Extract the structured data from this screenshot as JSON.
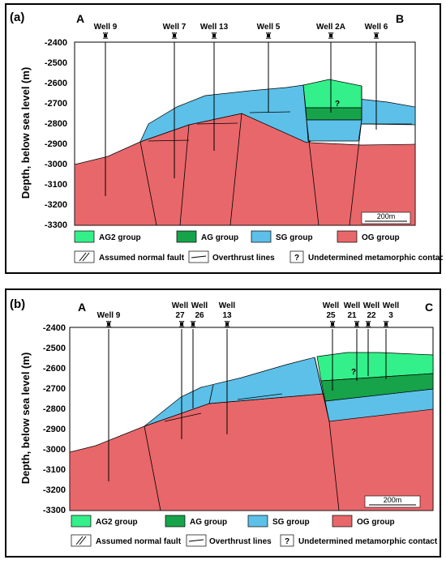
{
  "colors": {
    "AG2": "#33f08a",
    "AG": "#17a34a",
    "SG": "#5cc0e8",
    "OG": "#e8676a",
    "bg": "#ffffff"
  },
  "y_axis_label": "Depth, below sea level (m)",
  "legend": {
    "ag2": "AG2 group",
    "ag": "AG group",
    "sg": "SG group",
    "og": "OG group",
    "fault": "Assumed normal fault",
    "overthrust": "Overthrust lines",
    "unknown_symbol": "?",
    "unknown": "Undetermined metamorphic contact"
  },
  "scale_bar": "200m",
  "panels": [
    {
      "label": "(a)",
      "end_left": "A",
      "end_right": "B",
      "question_mark": "?",
      "ticks": [
        "-2400",
        "-2500",
        "-2600",
        "-2700",
        "-2800",
        "-2900",
        "-3000",
        "-3100",
        "-3200",
        "-3300"
      ],
      "wells": [
        {
          "l1": "Well 9",
          "l2": ""
        },
        {
          "l1": "Well 7",
          "l2": ""
        },
        {
          "l1": "Well 13",
          "l2": ""
        },
        {
          "l1": "Well 5",
          "l2": ""
        },
        {
          "l1": "Well 2A",
          "l2": ""
        },
        {
          "l1": "Well 6",
          "l2": ""
        }
      ]
    },
    {
      "label": "(b)",
      "end_left": "A",
      "end_right": "C",
      "question_mark": "?",
      "ticks": [
        "-2400",
        "-2500",
        "-2600",
        "-2700",
        "-2800",
        "-2900",
        "-3000",
        "-3100",
        "-3200",
        "-3300"
      ],
      "wells": [
        {
          "l1": "Well 9",
          "l2": ""
        },
        {
          "l1": "Well",
          "l2": "27"
        },
        {
          "l1": "Well",
          "l2": "26"
        },
        {
          "l1": "Well",
          "l2": "13"
        },
        {
          "l1": "Well",
          "l2": "25"
        },
        {
          "l1": "Well",
          "l2": "21"
        },
        {
          "l1": "Well",
          "l2": "22"
        },
        {
          "l1": "Well",
          "l2": "3"
        }
      ]
    }
  ]
}
